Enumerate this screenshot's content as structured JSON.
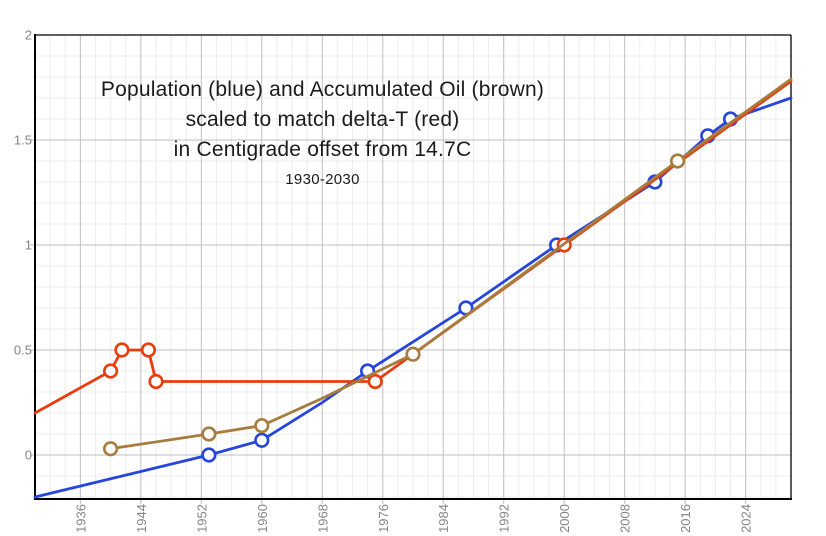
{
  "title": {
    "line1": "Population (blue) and Accumulated Oil (brown)",
    "line2": "scaled to match delta-T (red)",
    "line3": "in Centigrade offset from 14.7C",
    "line4": "1930-2030"
  },
  "chart_data": {
    "type": "line",
    "title": "Population (blue) and Accumulated Oil (brown) scaled to match delta-T (red) in Centigrade offset from 14.7C",
    "subtitle": "1930-2030",
    "grid": {
      "show": true,
      "minor_color": "#ececec",
      "major_color": "#bfbfbf"
    },
    "axis_color": "#000000",
    "tick_label_color": "#848484",
    "legend_position": "none",
    "x_axis": {
      "min": 1930,
      "max": 2030,
      "minor_step": 2,
      "tick_label_rotation": -90,
      "major_ticks": [
        {
          "year": 1936,
          "label": "1936"
        },
        {
          "year": 1944,
          "label": "1944"
        },
        {
          "year": 1952,
          "label": "1952"
        },
        {
          "year": 1960,
          "label": "1960"
        },
        {
          "year": 1968,
          "label": "1968"
        },
        {
          "year": 1976,
          "label": "1976"
        },
        {
          "year": 1984,
          "label": "1984"
        },
        {
          "year": 1992,
          "label": "1992"
        },
        {
          "year": 2000,
          "label": "2000"
        },
        {
          "year": 2008,
          "label": "2008"
        },
        {
          "year": 2016,
          "label": "2016"
        },
        {
          "year": 2024,
          "label": "2024"
        }
      ]
    },
    "y_axis": {
      "min": -0.21,
      "max": 2.0,
      "minor_step": 0.1,
      "major_ticks": [
        {
          "value": 0,
          "label": "0"
        },
        {
          "value": 0.5,
          "label": "0.5"
        },
        {
          "value": 1,
          "label": "1"
        },
        {
          "value": 1.5,
          "label": "1.5"
        },
        {
          "value": 2,
          "label": "2"
        }
      ]
    },
    "series": [
      {
        "name": "Population",
        "legend_hint": "blue",
        "color": "#2545dd",
        "line": [
          [
            1930,
            -0.2
          ],
          [
            1953,
            0
          ],
          [
            1960,
            0.07
          ],
          [
            1968,
            0.25
          ],
          [
            1974,
            0.4
          ],
          [
            1987,
            0.7
          ],
          [
            1999,
            1.0
          ],
          [
            2012,
            1.3
          ],
          [
            2019,
            1.52
          ],
          [
            2022,
            1.6
          ],
          [
            2030,
            1.7
          ]
        ],
        "markers": [
          [
            1953,
            0
          ],
          [
            1960,
            0.07
          ],
          [
            1974,
            0.4
          ],
          [
            1987,
            0.7
          ],
          [
            1999,
            1.0
          ],
          [
            2012,
            1.3
          ],
          [
            2019,
            1.52
          ],
          [
            2022,
            1.6
          ]
        ]
      },
      {
        "name": "delta-T",
        "legend_hint": "red",
        "color": "#e93c0f",
        "line": [
          [
            1930,
            0.2
          ],
          [
            1940,
            0.4
          ],
          [
            1941.5,
            0.5
          ],
          [
            1945,
            0.5
          ],
          [
            1946,
            0.35
          ],
          [
            1975,
            0.35
          ],
          [
            2000,
            1.0
          ],
          [
            2030,
            1.78
          ]
        ],
        "markers": [
          [
            1940,
            0.4
          ],
          [
            1941.5,
            0.5
          ],
          [
            1945,
            0.5
          ],
          [
            1946,
            0.35
          ],
          [
            1975,
            0.35
          ],
          [
            2000,
            1.0
          ]
        ]
      },
      {
        "name": "Accumulated Oil",
        "legend_hint": "brown",
        "color": "#a87c3e",
        "line": [
          [
            1940,
            0.03
          ],
          [
            1953,
            0.1
          ],
          [
            1960,
            0.14
          ],
          [
            1968,
            0.27
          ],
          [
            1980,
            0.48
          ],
          [
            2015,
            1.4
          ],
          [
            2030,
            1.79
          ]
        ],
        "markers": [
          [
            1940,
            0.03
          ],
          [
            1953,
            0.1
          ],
          [
            1960,
            0.14
          ],
          [
            1980,
            0.48
          ],
          [
            2015,
            1.4
          ]
        ]
      }
    ]
  }
}
